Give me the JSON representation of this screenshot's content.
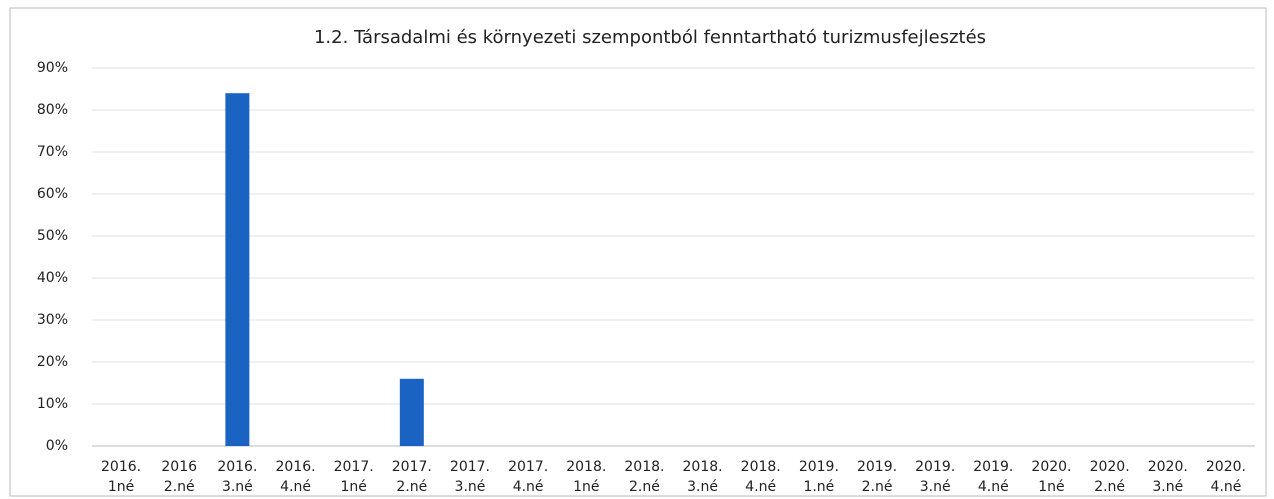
{
  "chart_data": {
    "type": "bar",
    "title": "1.2. Társadalmi és környezeti szempontból fenntartható turizmusfejlesztés",
    "categories": [
      "2016. 1né",
      "2016 2.né",
      "2016. 3.né",
      "2016. 4.né",
      "2017. 1né",
      "2017. 2.né",
      "2017. 3.né",
      "2017. 4.né",
      "2018. 1né",
      "2018. 2.né",
      "2018. 3.né",
      "2018. 4.né",
      "2019. 1.né",
      "2019. 2.né",
      "2019. 3.né",
      "2019. 4.né",
      "2020. 1né",
      "2020. 2.né",
      "2020. 3.né",
      "2020. 4.né"
    ],
    "values": [
      0,
      0,
      84,
      0,
      0,
      16,
      0,
      0,
      0,
      0,
      0,
      0,
      0,
      0,
      0,
      0,
      0,
      0,
      0,
      0
    ],
    "color": "#1a63c2",
    "ylim": [
      0,
      90
    ],
    "yticks": [
      {
        "value": 0,
        "label": "0%"
      },
      {
        "value": 10,
        "label": "10%"
      },
      {
        "value": 20,
        "label": "20%"
      },
      {
        "value": 30,
        "label": "30%"
      },
      {
        "value": 40,
        "label": "40%"
      },
      {
        "value": 50,
        "label": "50%"
      },
      {
        "value": 60,
        "label": "60%"
      },
      {
        "value": 70,
        "label": "70%"
      },
      {
        "value": 80,
        "label": "80%"
      },
      {
        "value": 90,
        "label": "90%"
      }
    ],
    "grid": true
  }
}
